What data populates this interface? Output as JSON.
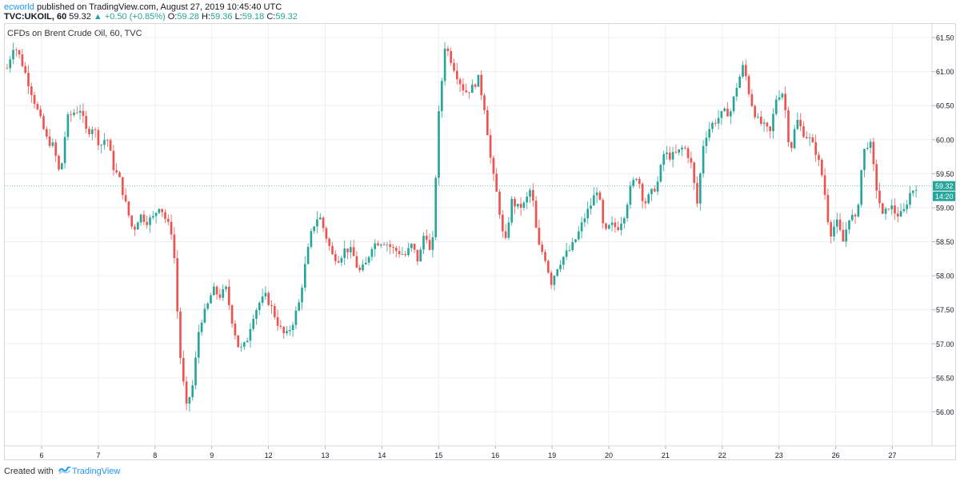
{
  "header": {
    "author": "ecworld",
    "published_text": "published on TradingView.com, August 27, 2019 10:45:40 UTC",
    "symbol": "TVC:UKOIL, 60",
    "last": "59.32",
    "change": "+0.50 (+0.85%)",
    "o_label": "O:",
    "o": "59.28",
    "h_label": "H:",
    "h": "59.36",
    "l_label": "L:",
    "l": "59.18",
    "c_label": "C:",
    "c": "59.32"
  },
  "chart_title": "CFDs on Brent Crude Oil, 60, TVC",
  "price_tag": "59.32",
  "time_tag": "14:20",
  "footer": {
    "created_with": "Created with",
    "brand": "TradingView"
  },
  "colors": {
    "up": "#26a69a",
    "down": "#ef5350",
    "grid": "#eceef2",
    "axis_text": "#131722"
  },
  "chart_data": {
    "type": "candlestick",
    "title": "CFDs on Brent Crude Oil, 60, TVC",
    "ylim": [
      55.5,
      61.7
    ],
    "y_ticks": [
      "56.00",
      "56.50",
      "57.00",
      "57.50",
      "58.00",
      "58.50",
      "59.00",
      "59.50",
      "60.00",
      "60.50",
      "61.00",
      "61.50"
    ],
    "x_ticks": [
      "6",
      "7",
      "8",
      "9",
      "12",
      "13",
      "14",
      "15",
      "16",
      "19",
      "20",
      "21",
      "22",
      "23",
      "26",
      "27"
    ],
    "close_path": [
      [
        0,
        61.05
      ],
      [
        1,
        61.4
      ],
      [
        2,
        61.2
      ],
      [
        3,
        60.9
      ],
      [
        4,
        60.6
      ],
      [
        5,
        60.3
      ],
      [
        6,
        60.0
      ],
      [
        7,
        59.9
      ],
      [
        8,
        59.45
      ],
      [
        9,
        60.3
      ],
      [
        10,
        60.4
      ],
      [
        11,
        60.45
      ],
      [
        12,
        60.1
      ],
      [
        13,
        60.2
      ],
      [
        14,
        59.9
      ],
      [
        15,
        60.05
      ],
      [
        16,
        59.6
      ],
      [
        17,
        59.4
      ],
      [
        18,
        59.0
      ],
      [
        19,
        58.65
      ],
      [
        20,
        58.9
      ],
      [
        21,
        58.8
      ],
      [
        22,
        58.85
      ],
      [
        23,
        59.05
      ],
      [
        24,
        58.8
      ],
      [
        25,
        58.6
      ],
      [
        26,
        56.9
      ],
      [
        27,
        56.05
      ],
      [
        28,
        56.4
      ],
      [
        29,
        57.3
      ],
      [
        30,
        57.5
      ],
      [
        31,
        57.8
      ],
      [
        32,
        57.7
      ],
      [
        33,
        57.8
      ],
      [
        34,
        57.3
      ],
      [
        35,
        56.9
      ],
      [
        36,
        57.0
      ],
      [
        37,
        57.4
      ],
      [
        38,
        57.6
      ],
      [
        39,
        57.7
      ],
      [
        40,
        57.5
      ],
      [
        41,
        57.25
      ],
      [
        42,
        57.1
      ],
      [
        43,
        57.3
      ],
      [
        44,
        57.6
      ],
      [
        45,
        58.2
      ],
      [
        46,
        58.7
      ],
      [
        47,
        58.9
      ],
      [
        48,
        58.6
      ],
      [
        49,
        58.3
      ],
      [
        50,
        58.25
      ],
      [
        51,
        58.4
      ],
      [
        52,
        58.35
      ],
      [
        53,
        58.05
      ],
      [
        54,
        58.15
      ],
      [
        55,
        58.45
      ],
      [
        56,
        58.5
      ],
      [
        57,
        58.5
      ],
      [
        58,
        58.4
      ],
      [
        59,
        58.35
      ],
      [
        60,
        58.3
      ],
      [
        61,
        58.45
      ],
      [
        62,
        58.2
      ],
      [
        63,
        58.7
      ],
      [
        64,
        58.2
      ],
      [
        65,
        60.3
      ],
      [
        66,
        61.4
      ],
      [
        67,
        61.15
      ],
      [
        68,
        60.9
      ],
      [
        69,
        60.7
      ],
      [
        70,
        60.75
      ],
      [
        71,
        60.9
      ],
      [
        72,
        60.45
      ],
      [
        73,
        59.6
      ],
      [
        74,
        59.1
      ],
      [
        75,
        58.4
      ],
      [
        76,
        59.1
      ],
      [
        77,
        59.0
      ],
      [
        78,
        59.05
      ],
      [
        79,
        59.3
      ],
      [
        80,
        58.45
      ],
      [
        81,
        58.3
      ],
      [
        82,
        57.9
      ],
      [
        83,
        58.15
      ],
      [
        84,
        58.3
      ],
      [
        85,
        58.4
      ],
      [
        86,
        58.6
      ],
      [
        87,
        58.85
      ],
      [
        88,
        59.05
      ],
      [
        89,
        59.3
      ],
      [
        90,
        58.6
      ],
      [
        91,
        58.75
      ],
      [
        92,
        58.7
      ],
      [
        93,
        58.9
      ],
      [
        94,
        59.3
      ],
      [
        95,
        59.5
      ],
      [
        96,
        59.05
      ],
      [
        97,
        59.2
      ],
      [
        98,
        59.35
      ],
      [
        99,
        59.8
      ],
      [
        100,
        59.75
      ],
      [
        101,
        59.8
      ],
      [
        102,
        59.9
      ],
      [
        103,
        59.7
      ],
      [
        104,
        59.05
      ],
      [
        105,
        60.0
      ],
      [
        106,
        60.2
      ],
      [
        107,
        60.3
      ],
      [
        108,
        60.4
      ],
      [
        109,
        60.4
      ],
      [
        110,
        60.8
      ],
      [
        111,
        61.1
      ],
      [
        112,
        60.6
      ],
      [
        113,
        60.3
      ],
      [
        114,
        60.2
      ],
      [
        115,
        60.1
      ],
      [
        116,
        60.65
      ],
      [
        117,
        60.7
      ],
      [
        118,
        59.8
      ],
      [
        119,
        60.3
      ],
      [
        120,
        60.1
      ],
      [
        121,
        60.0
      ],
      [
        122,
        59.8
      ],
      [
        123,
        59.4
      ],
      [
        124,
        58.6
      ],
      [
        125,
        58.8
      ],
      [
        126,
        58.5
      ],
      [
        127,
        58.9
      ],
      [
        128,
        58.8
      ],
      [
        129,
        59.8
      ],
      [
        130,
        60.0
      ],
      [
        131,
        59.3
      ],
      [
        132,
        58.85
      ],
      [
        133,
        59.05
      ],
      [
        134,
        58.9
      ],
      [
        135,
        58.9
      ],
      [
        136,
        59.2
      ],
      [
        137,
        59.32
      ]
    ],
    "series_note": ""
  }
}
